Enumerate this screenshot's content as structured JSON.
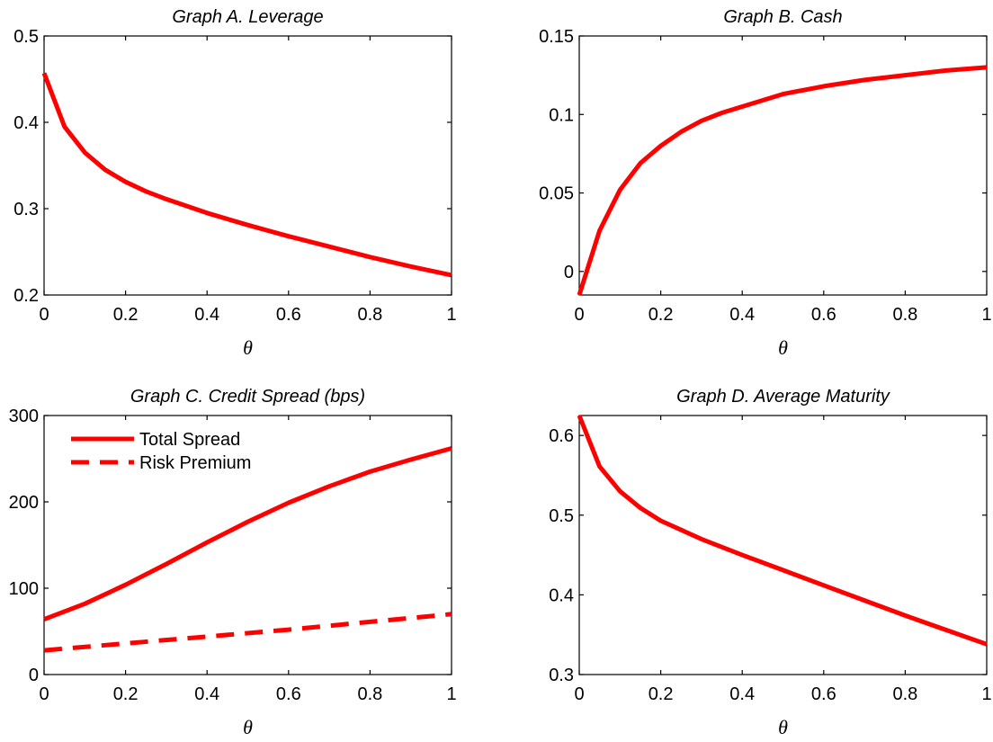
{
  "chart_data": [
    {
      "type": "line",
      "title": "Graph A. Leverage",
      "xlabel": "θ",
      "ylabel": "",
      "xlim": [
        0,
        1
      ],
      "ylim": [
        0.2,
        0.5
      ],
      "xticks": [
        0,
        0.2,
        0.4,
        0.6,
        0.8,
        1
      ],
      "xtick_labels": [
        "0",
        "0.2",
        "0.4",
        "0.6",
        "0.8",
        "1"
      ],
      "yticks": [
        0.2,
        0.3,
        0.4,
        0.5
      ],
      "ytick_labels": [
        "0.2",
        "0.3",
        "0.4",
        "0.5"
      ],
      "series": [
        {
          "color": "#ff0000",
          "style": "solid",
          "x": [
            0,
            0.05,
            0.1,
            0.15,
            0.2,
            0.25,
            0.3,
            0.4,
            0.5,
            0.6,
            0.7,
            0.8,
            0.9,
            1.0
          ],
          "y": [
            0.457,
            0.395,
            0.365,
            0.345,
            0.331,
            0.32,
            0.311,
            0.295,
            0.281,
            0.268,
            0.256,
            0.244,
            0.233,
            0.223
          ]
        }
      ]
    },
    {
      "type": "line",
      "title": "Graph B. Cash",
      "xlabel": "θ",
      "ylabel": "",
      "xlim": [
        0,
        1
      ],
      "ylim": [
        -0.015,
        0.15
      ],
      "xticks": [
        0,
        0.2,
        0.4,
        0.6,
        0.8,
        1
      ],
      "xtick_labels": [
        "0",
        "0.2",
        "0.4",
        "0.6",
        "0.8",
        "1"
      ],
      "yticks": [
        0,
        0.05,
        0.1,
        0.15
      ],
      "ytick_labels": [
        "0",
        "0.05",
        "0.1",
        "0.15"
      ],
      "series": [
        {
          "color": "#ff0000",
          "style": "solid",
          "x": [
            0,
            0.05,
            0.1,
            0.15,
            0.2,
            0.25,
            0.3,
            0.35,
            0.4,
            0.5,
            0.6,
            0.7,
            0.8,
            0.9,
            1.0
          ],
          "y": [
            -0.015,
            0.026,
            0.052,
            0.069,
            0.08,
            0.089,
            0.096,
            0.101,
            0.105,
            0.113,
            0.118,
            0.122,
            0.125,
            0.128,
            0.13
          ]
        }
      ]
    },
    {
      "type": "line",
      "title": "Graph C. Credit Spread (bps)",
      "xlabel": "θ",
      "ylabel": "",
      "xlim": [
        0,
        1
      ],
      "ylim": [
        0,
        300
      ],
      "xticks": [
        0,
        0.2,
        0.4,
        0.6,
        0.8,
        1
      ],
      "xtick_labels": [
        "0",
        "0.2",
        "0.4",
        "0.6",
        "0.8",
        "1"
      ],
      "yticks": [
        0,
        100,
        200,
        300
      ],
      "ytick_labels": [
        "0",
        "100",
        "200",
        "300"
      ],
      "legend": "top-left",
      "series": [
        {
          "name": "Total Spread",
          "color": "#ff0000",
          "style": "solid",
          "x": [
            0,
            0.1,
            0.2,
            0.3,
            0.4,
            0.5,
            0.6,
            0.7,
            0.8,
            0.9,
            1.0
          ],
          "y": [
            64,
            82,
            104,
            128,
            153,
            177,
            199,
            218,
            235,
            249,
            262
          ]
        },
        {
          "name": "Risk Premium",
          "color": "#ff0000",
          "style": "dashed",
          "x": [
            0,
            0.2,
            0.4,
            0.6,
            0.8,
            1.0
          ],
          "y": [
            28,
            36,
            44,
            52,
            61,
            70
          ]
        }
      ]
    },
    {
      "type": "line",
      "title": "Graph D. Average Maturity",
      "xlabel": "θ",
      "ylabel": "",
      "xlim": [
        0,
        1
      ],
      "ylim": [
        0.3,
        0.625
      ],
      "xticks": [
        0,
        0.2,
        0.4,
        0.6,
        0.8,
        1
      ],
      "xtick_labels": [
        "0",
        "0.2",
        "0.4",
        "0.6",
        "0.8",
        "1"
      ],
      "yticks": [
        0.3,
        0.4,
        0.5,
        0.6
      ],
      "ytick_labels": [
        "0.3",
        "0.4",
        "0.5",
        "0.6"
      ],
      "series": [
        {
          "color": "#ff0000",
          "style": "solid",
          "x": [
            0,
            0.05,
            0.1,
            0.15,
            0.2,
            0.3,
            0.4,
            0.5,
            0.6,
            0.7,
            0.8,
            0.9,
            1.0
          ],
          "y": [
            0.625,
            0.561,
            0.53,
            0.509,
            0.493,
            0.47,
            0.45,
            0.431,
            0.412,
            0.393,
            0.374,
            0.356,
            0.338
          ]
        }
      ]
    }
  ]
}
